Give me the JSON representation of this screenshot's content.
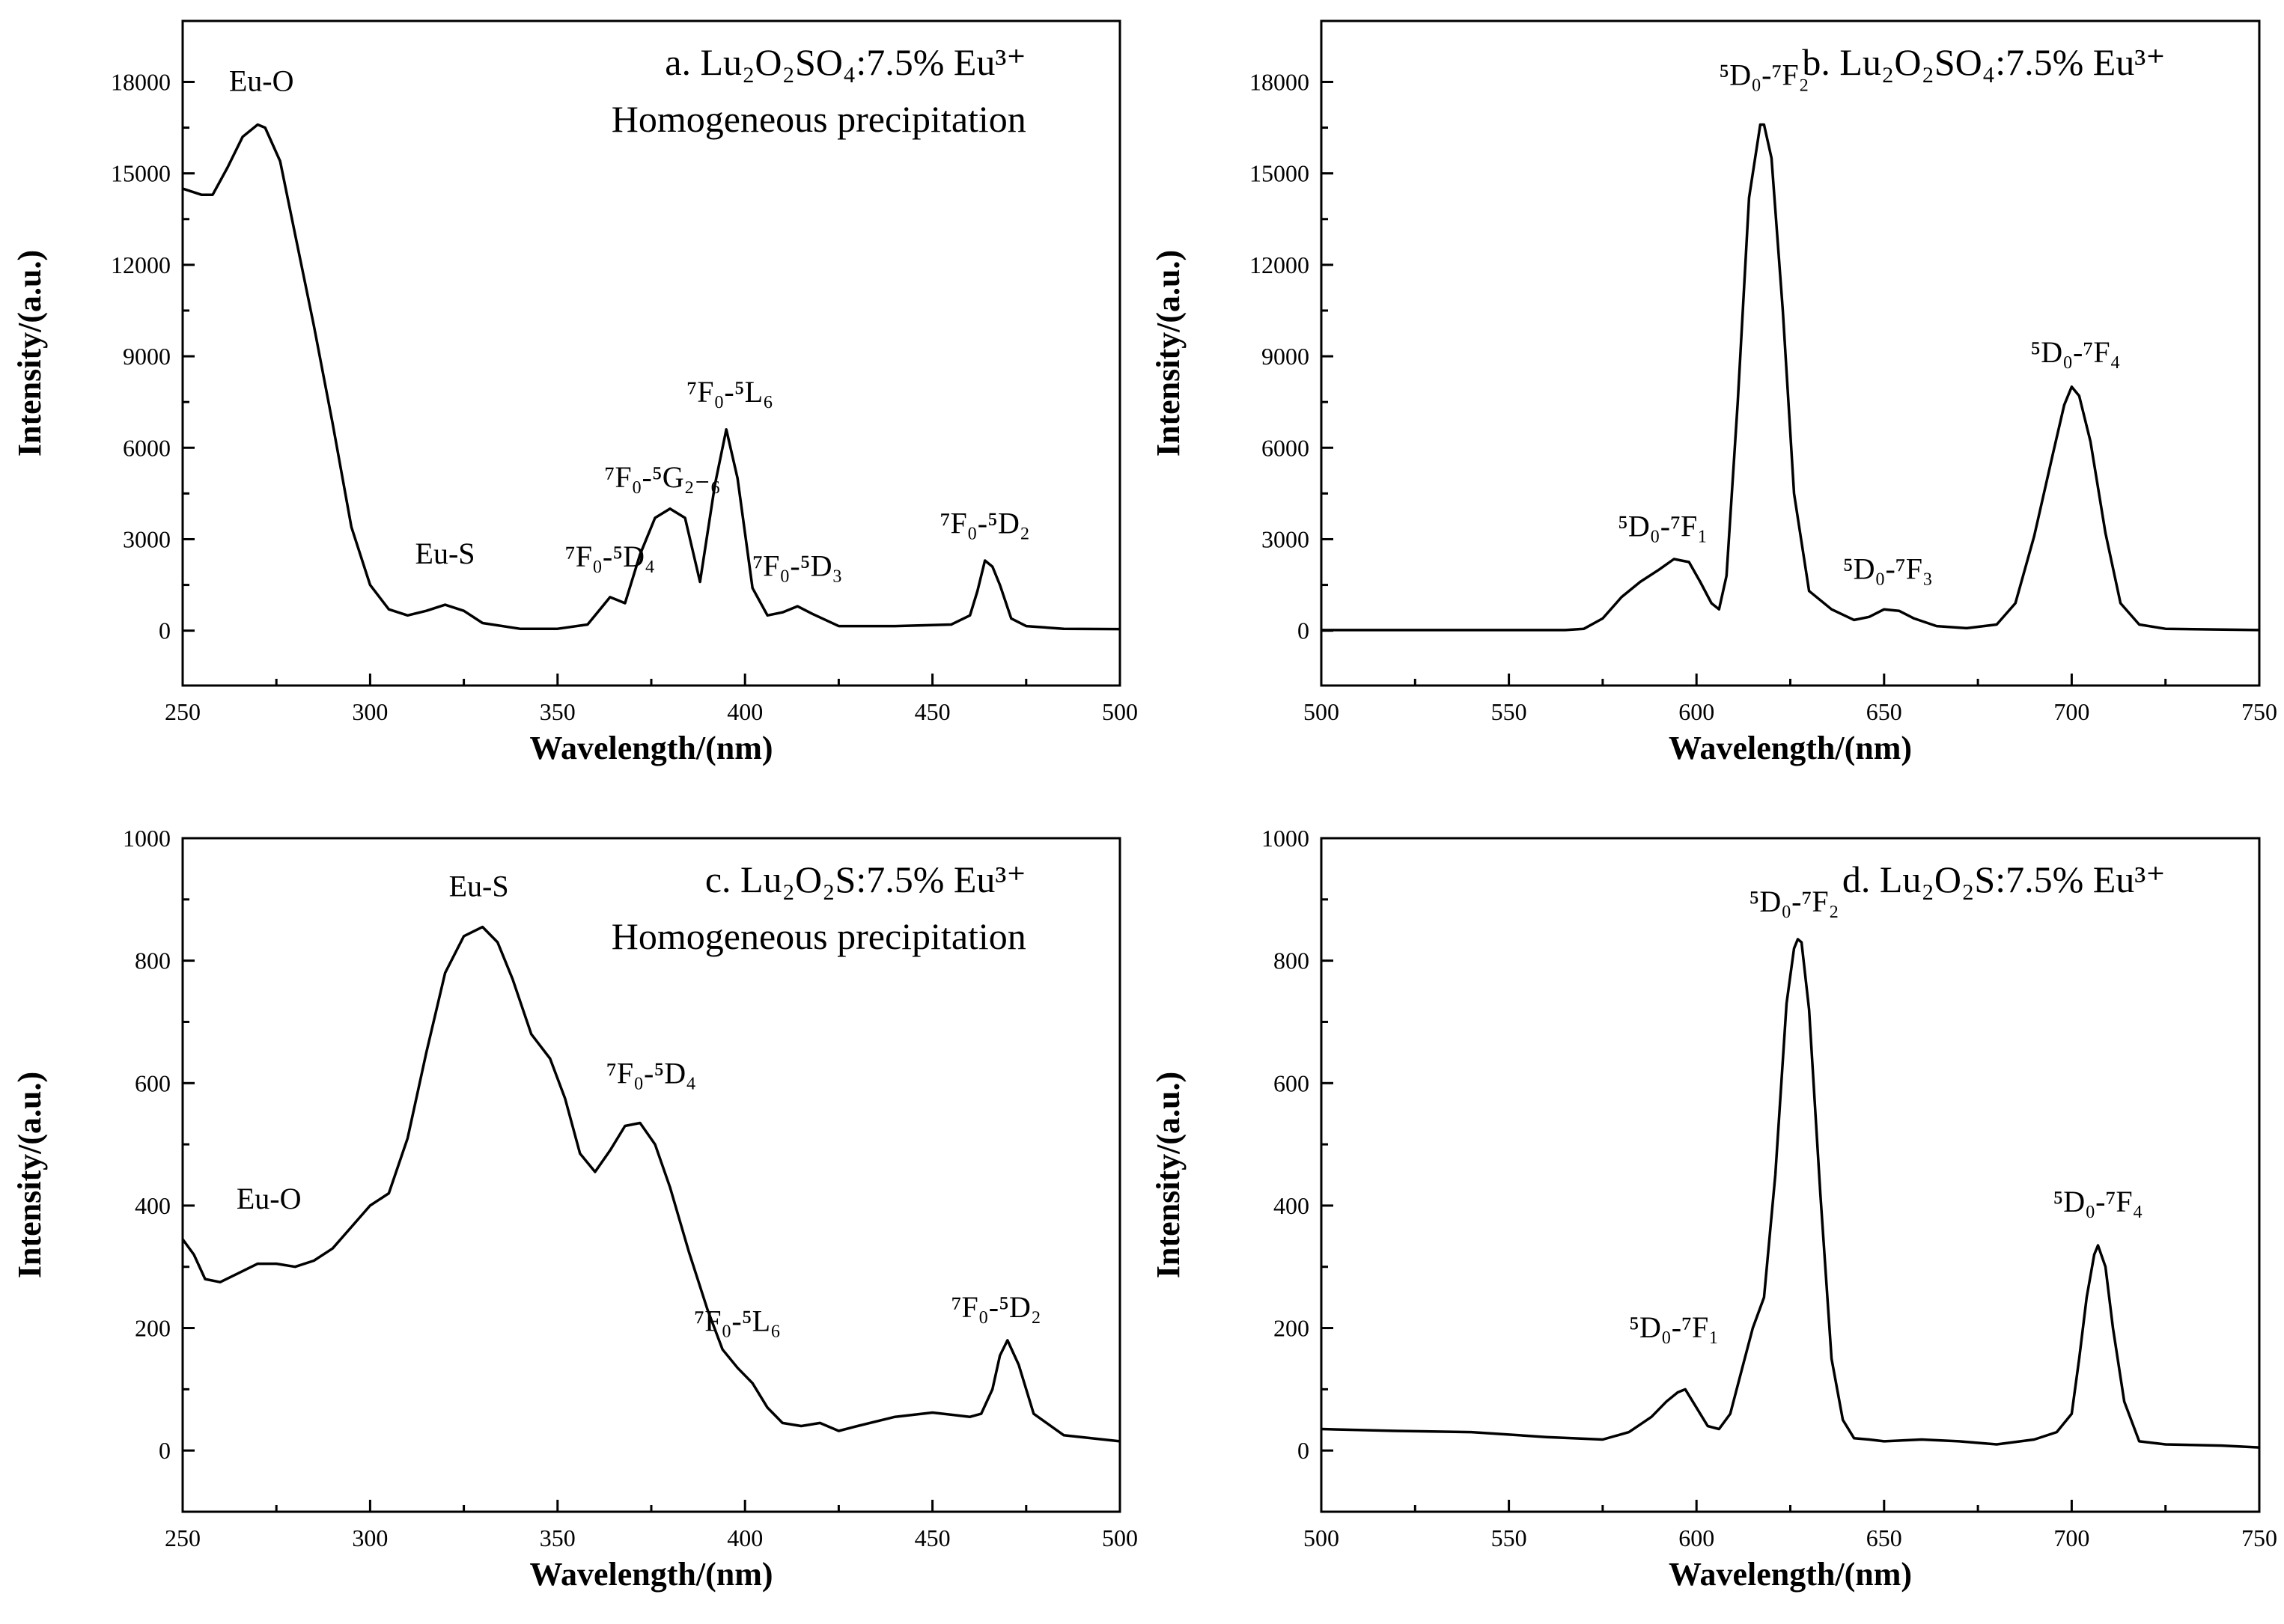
{
  "chart_data": [
    {
      "panel": "a",
      "type": "line",
      "title": [
        "a. Lu₂O₂SO₄:7.5% Eu³⁺",
        "Homogeneous precipitation"
      ],
      "xlabel": "Wavelength/(nm)",
      "ylabel": "Intensity/(a.u.)",
      "xlim": [
        250,
        500
      ],
      "ylim": [
        -1800,
        20000
      ],
      "xticks": [
        250,
        300,
        350,
        400,
        450,
        500
      ],
      "yticks": [
        0,
        3000,
        6000,
        9000,
        12000,
        15000,
        18000
      ],
      "series": [
        {
          "x": [
            250,
            255,
            258,
            262,
            266,
            270,
            272,
            276,
            280,
            285,
            290,
            295,
            300,
            305,
            310,
            315,
            320,
            325,
            330,
            340,
            350,
            358,
            362,
            364,
            366,
            368,
            372,
            376,
            380,
            384,
            388,
            392,
            395,
            398,
            402,
            406,
            410,
            414,
            418,
            425,
            440,
            455,
            460,
            462,
            464,
            466,
            468,
            471,
            475,
            485,
            500
          ],
          "y": [
            14500,
            14300,
            14300,
            15200,
            16200,
            16600,
            16500,
            15400,
            13000,
            10000,
            6800,
            3400,
            1500,
            700,
            500,
            650,
            850,
            650,
            250,
            60,
            60,
            200,
            800,
            1100,
            1000,
            900,
            2500,
            3700,
            4000,
            3700,
            1600,
            4800,
            6600,
            5000,
            1400,
            500,
            600,
            800,
            550,
            150,
            150,
            200,
            500,
            1300,
            2300,
            2100,
            1500,
            400,
            150,
            60,
            50
          ]
        }
      ],
      "annotations": [
        {
          "label": "Eu-O",
          "at": [
            271,
            17700
          ]
        },
        {
          "label": "Eu-S",
          "at": [
            320,
            2200
          ]
        },
        {
          "label": "⁷F₀-⁵D₄",
          "at": [
            364,
            2100
          ]
        },
        {
          "label": "⁷F₀-⁵G₂₋₆",
          "at": [
            378,
            4700
          ]
        },
        {
          "label": "⁷F₀-⁵L₆",
          "at": [
            396,
            7500
          ]
        },
        {
          "label": "⁷F₀-⁵D₃",
          "at": [
            414,
            1800
          ]
        },
        {
          "label": "⁷F₀-⁵D₂",
          "at": [
            464,
            3200
          ]
        }
      ]
    },
    {
      "panel": "b",
      "type": "line",
      "title": [
        "b. Lu₂O₂SO₄:7.5% Eu³⁺"
      ],
      "xlabel": "Wavelength/(nm)",
      "ylabel": "Intensity/(a.u.)",
      "xlim": [
        500,
        750
      ],
      "ylim": [
        -1800,
        20000
      ],
      "xticks": [
        500,
        550,
        600,
        650,
        700,
        750
      ],
      "yticks": [
        0,
        3000,
        6000,
        9000,
        12000,
        15000,
        18000
      ],
      "series": [
        {
          "x": [
            500,
            540,
            565,
            570,
            575,
            580,
            585,
            590,
            594,
            598,
            601,
            604,
            606,
            608,
            611,
            614,
            617,
            618,
            620,
            623,
            626,
            630,
            636,
            642,
            646,
            650,
            654,
            658,
            664,
            672,
            680,
            685,
            690,
            695,
            698,
            700,
            702,
            705,
            709,
            713,
            718,
            725,
            750
          ],
          "y": [
            20,
            20,
            20,
            60,
            400,
            1100,
            1600,
            2000,
            2350,
            2250,
            1600,
            900,
            700,
            1800,
            7500,
            14200,
            16600,
            16600,
            15500,
            10500,
            4500,
            1300,
            700,
            350,
            450,
            700,
            650,
            400,
            150,
            80,
            200,
            900,
            3100,
            5800,
            7400,
            8000,
            7700,
            6200,
            3200,
            900,
            200,
            60,
            20
          ]
        }
      ],
      "annotations": [
        {
          "label": "⁵D₀-⁷F₁",
          "at": [
            591,
            3100
          ]
        },
        {
          "label": "⁵D₀-⁷F₂",
          "at": [
            618,
            17900
          ]
        },
        {
          "label": "⁵D₀-⁷F₃",
          "at": [
            651,
            1700
          ]
        },
        {
          "label": "⁵D₀-⁷F₄",
          "at": [
            701,
            8800
          ]
        }
      ]
    },
    {
      "panel": "c",
      "type": "line",
      "title": [
        "c. Lu₂O₂S:7.5% Eu³⁺",
        "Homogeneous precipitation"
      ],
      "xlabel": "Wavelength/(nm)",
      "ylabel": "Intensity/(a.u.)",
      "xlim": [
        250,
        500
      ],
      "ylim": [
        -100,
        1000
      ],
      "xticks": [
        250,
        300,
        350,
        400,
        450,
        500
      ],
      "yticks": [
        0,
        200,
        400,
        600,
        800,
        1000
      ],
      "series": [
        {
          "x": [
            250,
            253,
            256,
            260,
            265,
            270,
            275,
            280,
            285,
            290,
            295,
            300,
            305,
            310,
            315,
            320,
            325,
            330,
            334,
            338,
            343,
            348,
            352,
            356,
            360,
            364,
            368,
            372,
            376,
            380,
            385,
            390,
            394,
            398,
            402,
            406,
            410,
            415,
            420,
            425,
            430,
            440,
            450,
            460,
            463,
            466,
            468,
            470,
            473,
            477,
            485,
            500
          ],
          "y": [
            345,
            320,
            280,
            275,
            290,
            305,
            305,
            300,
            310,
            330,
            365,
            400,
            420,
            510,
            650,
            780,
            840,
            855,
            830,
            770,
            680,
            640,
            575,
            485,
            455,
            490,
            530,
            535,
            500,
            430,
            325,
            230,
            165,
            135,
            110,
            70,
            45,
            40,
            45,
            32,
            40,
            55,
            62,
            55,
            60,
            100,
            155,
            180,
            140,
            60,
            25,
            15
          ]
        }
      ],
      "annotations": [
        {
          "label": "Eu-S",
          "at": [
            329,
            905
          ]
        },
        {
          "label": "Eu-O",
          "at": [
            273,
            395
          ]
        },
        {
          "label": "⁷F₀-⁵D₄",
          "at": [
            375,
            600
          ]
        },
        {
          "label": "⁷F₀-⁵L₆",
          "at": [
            398,
            195
          ]
        },
        {
          "label": "⁷F₀-⁵D₂",
          "at": [
            467,
            218
          ]
        }
      ]
    },
    {
      "panel": "d",
      "type": "line",
      "title": [
        "d. Lu₂O₂S:7.5% Eu³⁺"
      ],
      "xlabel": "Wavelength/(nm)",
      "ylabel": "Intensity/(a.u.)",
      "xlim": [
        500,
        750
      ],
      "ylim": [
        -100,
        1000
      ],
      "xticks": [
        500,
        550,
        600,
        650,
        700,
        750
      ],
      "yticks": [
        0,
        200,
        400,
        600,
        800,
        1000
      ],
      "series": [
        {
          "x": [
            500,
            520,
            540,
            560,
            575,
            582,
            588,
            592,
            595,
            597,
            600,
            603,
            606,
            609,
            612,
            615,
            618,
            621,
            624,
            626,
            627,
            628,
            630,
            633,
            636,
            639,
            642,
            646,
            650,
            660,
            670,
            680,
            690,
            696,
            700,
            702,
            704,
            706,
            707,
            709,
            711,
            714,
            718,
            725,
            740,
            750
          ],
          "y": [
            35,
            32,
            30,
            22,
            18,
            30,
            55,
            80,
            95,
            100,
            70,
            40,
            35,
            60,
            130,
            200,
            250,
            450,
            730,
            820,
            835,
            830,
            720,
            420,
            150,
            50,
            20,
            18,
            15,
            18,
            15,
            10,
            18,
            30,
            60,
            150,
            250,
            320,
            335,
            300,
            200,
            80,
            15,
            10,
            8,
            5
          ]
        }
      ],
      "annotations": [
        {
          "label": "⁵D₀-⁷F₁",
          "at": [
            594,
            185
          ]
        },
        {
          "label": "⁵D₀-⁷F₂",
          "at": [
            626,
            880
          ]
        },
        {
          "label": "⁵D₀-⁷F₄",
          "at": [
            707,
            390
          ]
        }
      ]
    }
  ]
}
